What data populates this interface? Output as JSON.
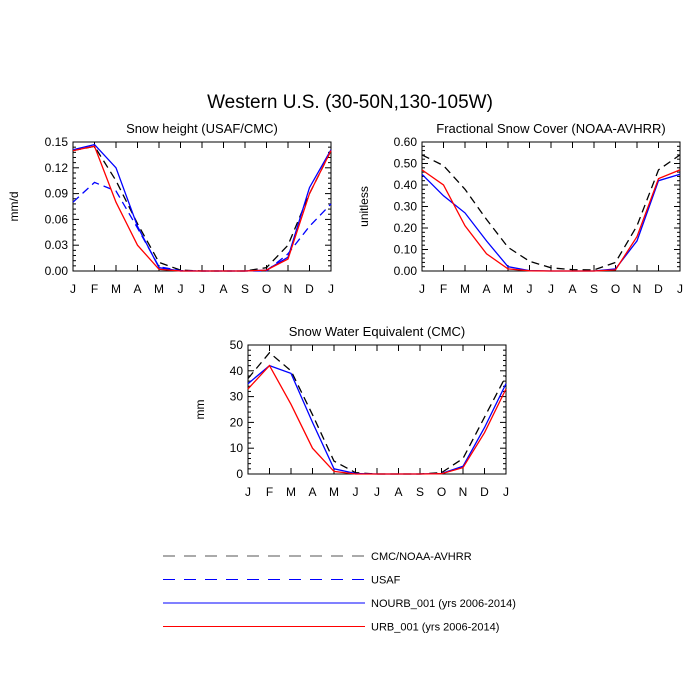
{
  "title": "Western U.S. (30-50N,130-105W)",
  "months": [
    "J",
    "F",
    "M",
    "A",
    "M",
    "J",
    "J",
    "A",
    "S",
    "O",
    "N",
    "D",
    "J"
  ],
  "legend": [
    {
      "label": "CMC/NOAA-AVHRR",
      "color": "#000000",
      "dash": true
    },
    {
      "label": "USAF",
      "color": "#0000ff",
      "dash": true
    },
    {
      "label": "NOURB_001 (yrs 2006-2014)",
      "color": "#0000ff",
      "dash": false
    },
    {
      "label": "URB_001 (yrs 2006-2014)",
      "color": "#ff0000",
      "dash": false
    }
  ],
  "chart_data": [
    {
      "type": "line",
      "title": "Snow height (USAF/CMC)",
      "ylabel": "mm/d",
      "ylim": [
        0,
        0.15
      ],
      "yticks": [
        "0.00",
        "0.03",
        "0.06",
        "0.09",
        "0.12",
        "0.15"
      ],
      "series": [
        {
          "name": "CMC/NOAA-AVHRR",
          "values": [
            0.14,
            0.145,
            0.105,
            0.055,
            0.01,
            0.001,
            0,
            0,
            0,
            0.004,
            0.03,
            0.09,
            0.14
          ]
        },
        {
          "name": "USAF",
          "values": [
            0.08,
            0.103,
            0.093,
            0.05,
            0.005,
            0.0005,
            0,
            0,
            0,
            0.0,
            0.02,
            0.052,
            0.078
          ]
        },
        {
          "name": "NOURB_001 (yrs 2006-2014)",
          "values": [
            0.141,
            0.147,
            0.12,
            0.052,
            0.004,
            0,
            0,
            0,
            0,
            0.001,
            0.016,
            0.097,
            0.141
          ]
        },
        {
          "name": "URB_001 (yrs 2006-2014)",
          "values": [
            0.14,
            0.145,
            0.08,
            0.03,
            0.002,
            0,
            0,
            0,
            0,
            0.001,
            0.014,
            0.09,
            0.14
          ]
        }
      ]
    },
    {
      "type": "line",
      "title": "Fractional Snow Cover (NOAA-AVHRR)",
      "ylabel": "unitless",
      "ylim": [
        0,
        0.6
      ],
      "yticks": [
        "0.00",
        "0.10",
        "0.20",
        "0.30",
        "0.40",
        "0.50",
        "0.60"
      ],
      "series": [
        {
          "name": "CMC/NOAA-AVHRR",
          "values": [
            0.54,
            0.49,
            0.38,
            0.24,
            0.11,
            0.045,
            0.015,
            0.006,
            0.005,
            0.04,
            0.21,
            0.47,
            0.54
          ]
        },
        {
          "name": "NOURB_001 (yrs 2006-2014)",
          "values": [
            0.45,
            0.35,
            0.27,
            0.14,
            0.02,
            0.002,
            0,
            0,
            0,
            0.01,
            0.14,
            0.42,
            0.45
          ]
        },
        {
          "name": "URB_001 (yrs 2006-2014)",
          "values": [
            0.47,
            0.4,
            0.21,
            0.08,
            0.01,
            0.001,
            0,
            0,
            0,
            0.005,
            0.16,
            0.43,
            0.47
          ]
        }
      ]
    },
    {
      "type": "line",
      "title": "Snow Water Equivalent (CMC)",
      "ylabel": "mm",
      "ylim": [
        0,
        50
      ],
      "yticks": [
        "0",
        "10",
        "20",
        "30",
        "40",
        "50"
      ],
      "series": [
        {
          "name": "CMC/NOAA-AVHRR",
          "values": [
            37,
            47,
            40,
            23,
            5,
            0.5,
            0,
            0,
            0,
            0.5,
            6,
            22,
            38
          ]
        },
        {
          "name": "NOURB_001 (yrs 2006-2014)",
          "values": [
            35,
            42,
            39,
            20,
            2,
            0.2,
            0,
            0,
            0,
            0.2,
            3,
            18,
            35
          ]
        },
        {
          "name": "URB_001 (yrs 2006-2014)",
          "values": [
            33,
            42,
            27,
            10,
            1,
            0,
            0,
            0,
            0,
            0.1,
            2.5,
            16,
            33
          ]
        }
      ]
    }
  ]
}
